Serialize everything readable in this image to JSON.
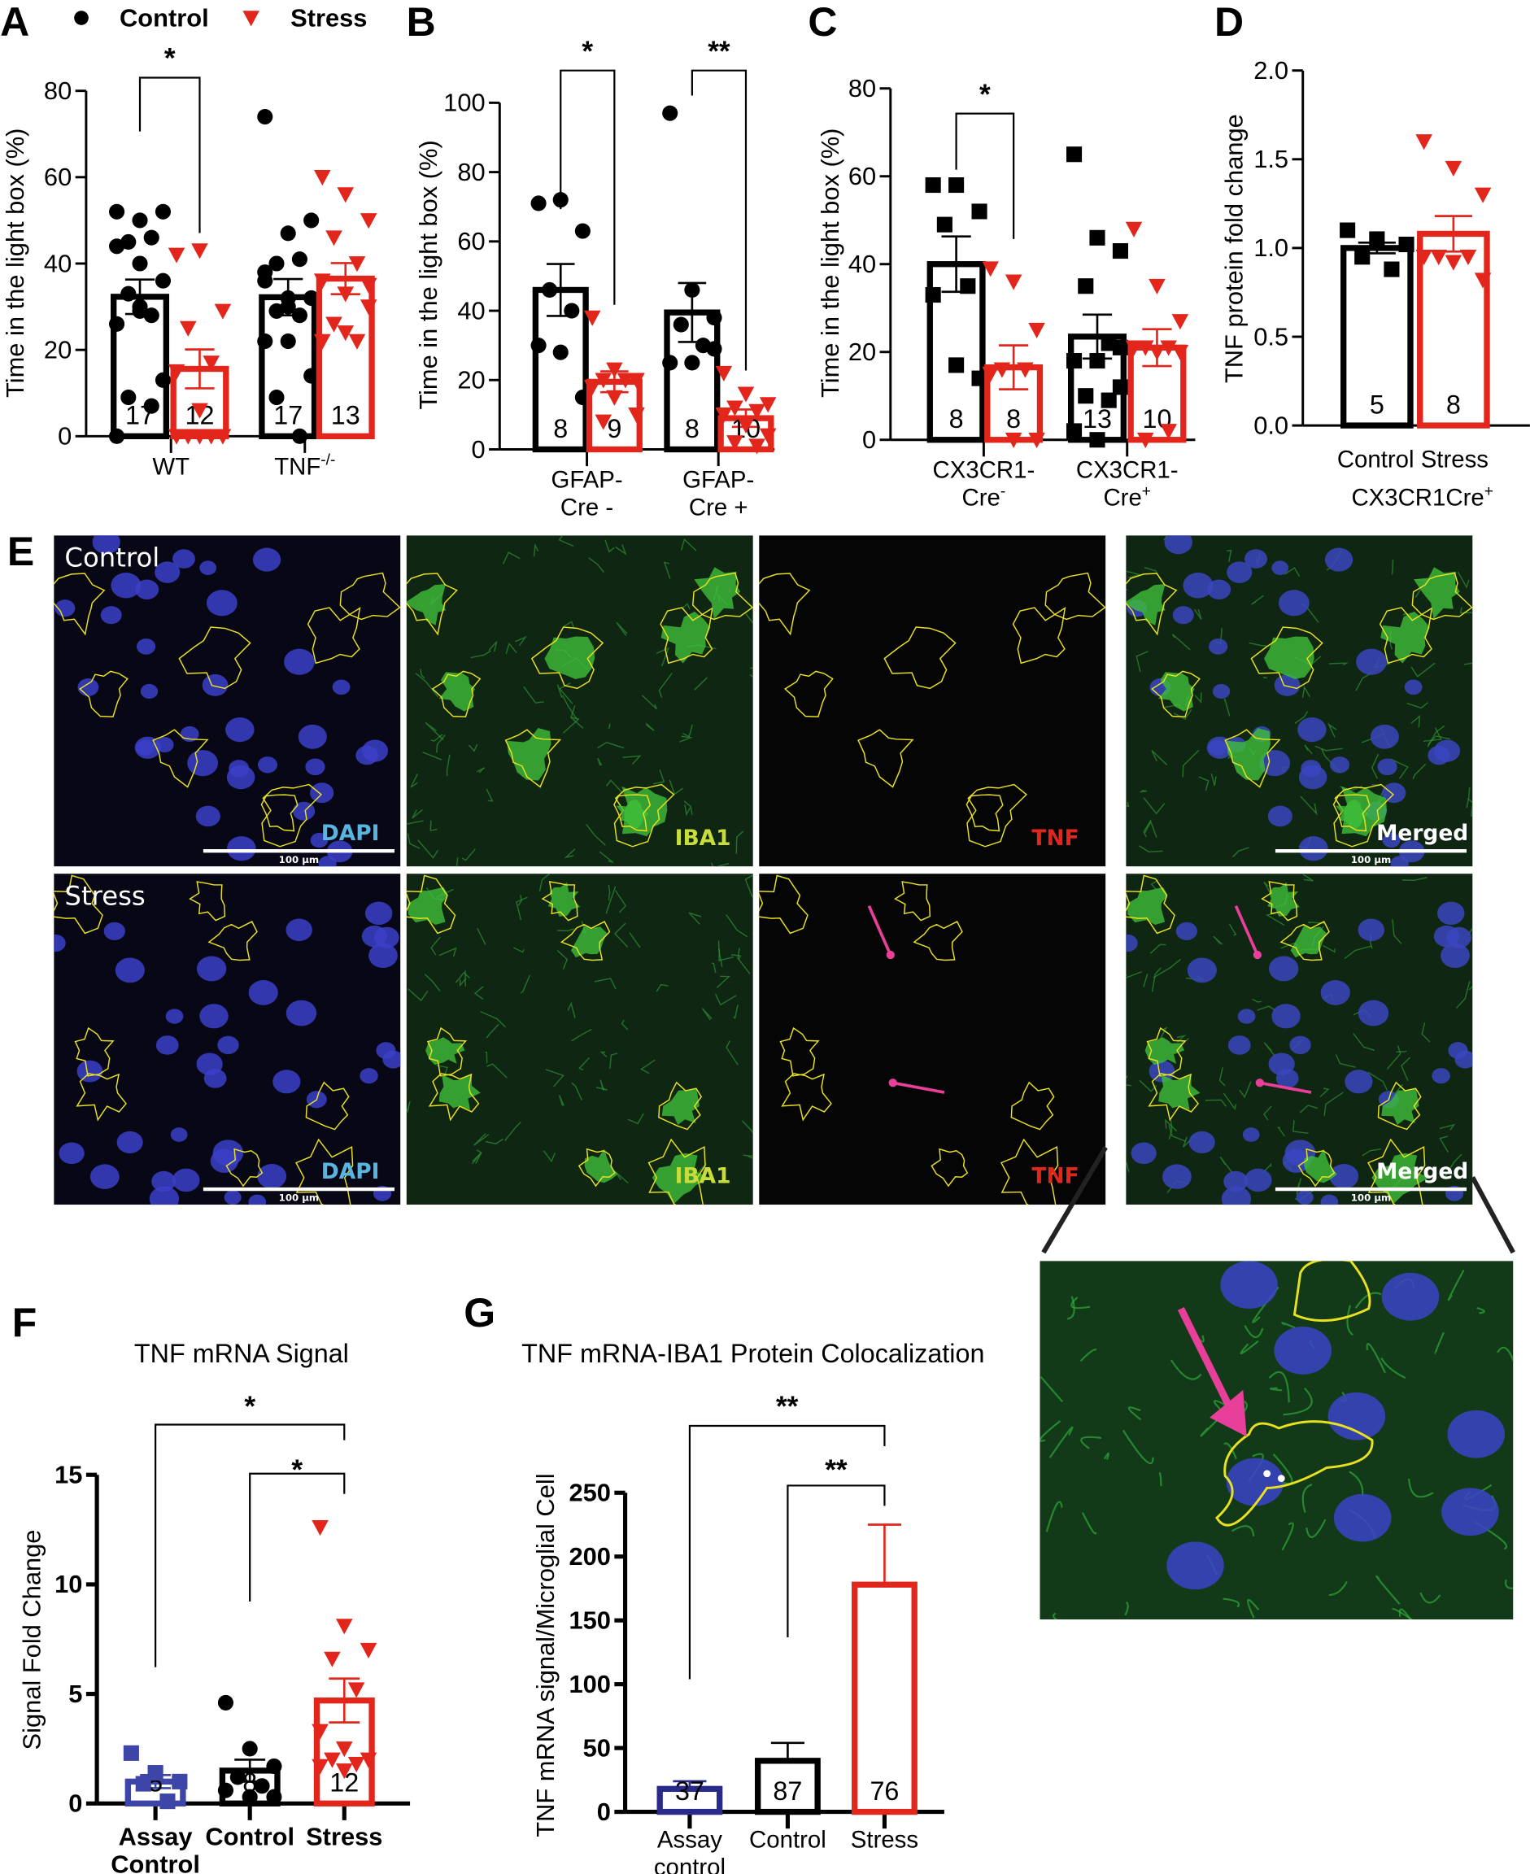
{
  "legend": [
    {
      "label": "Control",
      "marker": "circle",
      "color": "#000000"
    },
    {
      "label": "Stress",
      "marker": "triangle-down",
      "color": "#e2261c"
    }
  ],
  "panel_E": {
    "letter": "E",
    "rows": [
      "Control",
      "Stress"
    ],
    "channels": [
      {
        "label": "DAPI",
        "color": "#5ab4e0"
      },
      {
        "label": "IBA1",
        "color": "#c8dc3c"
      },
      {
        "label": "TNF",
        "color": "#e2261c"
      },
      {
        "label": "Merged",
        "color": "#ffffff"
      }
    ],
    "scale_bar": "100 µm",
    "arrow_color": "#e8409a",
    "outline_color": "#e8e020"
  },
  "chart_data": [
    {
      "panel": "A",
      "type": "bar",
      "ylabel": "Time in the light box (%)",
      "ylim": [
        0,
        80
      ],
      "yticks": [
        0,
        20,
        40,
        60,
        80
      ],
      "ytick_labels": [
        "0",
        "20",
        "40",
        "60",
        "80"
      ],
      "categories": [
        {
          "text": "WT",
          "sup": ""
        },
        {
          "text": "TNF",
          "sup": "-/-"
        }
      ],
      "bars": [
        {
          "group": "WT",
          "condition": "Control",
          "mean": 32.3,
          "sem": 4.0,
          "n": "17",
          "color": "#000000",
          "marker": "circle",
          "points": [
            52,
            50,
            52,
            45,
            46,
            44,
            40,
            36,
            33,
            28,
            26,
            29,
            13,
            9,
            7,
            0,
            30
          ]
        },
        {
          "group": "WT",
          "condition": "Stress",
          "mean": 15.6,
          "sem": 4.5,
          "n": "12",
          "color": "#e2261c",
          "marker": "triangle-down",
          "points": [
            42,
            43,
            29,
            25,
            17,
            15,
            6,
            0,
            0,
            0,
            0,
            0
          ]
        },
        {
          "group": "TNF-/-",
          "condition": "Control",
          "mean": 32.2,
          "sem": 4.2,
          "n": "17",
          "color": "#000000",
          "marker": "circle",
          "points": [
            74,
            47,
            50,
            40,
            41,
            36,
            32,
            32,
            29,
            28,
            22,
            22,
            14,
            9,
            0,
            38,
            30
          ]
        },
        {
          "group": "TNF-/-",
          "condition": "Stress",
          "mean": 36.5,
          "sem": 3.6,
          "n": "13",
          "color": "#e2261c",
          "marker": "triangle-down",
          "points": [
            60,
            56,
            50,
            46,
            40,
            36,
            33,
            30,
            26,
            22,
            22,
            24,
            35
          ]
        }
      ],
      "significance": [
        {
          "from": 0,
          "to": 1,
          "label": "*"
        }
      ]
    },
    {
      "panel": "B",
      "type": "bar",
      "ylabel": "Time in the light box (%)",
      "ylim": [
        0,
        100
      ],
      "yticks": [
        0,
        20,
        40,
        60,
        80,
        100
      ],
      "ytick_labels": [
        "0",
        "20",
        "40",
        "60",
        "80",
        "100"
      ],
      "categories": [
        {
          "lines": [
            "GFAP-",
            "Cre -"
          ]
        },
        {
          "lines": [
            "GFAP-",
            "Cre +"
          ]
        }
      ],
      "bars": [
        {
          "group": "GFAP-Cre -",
          "condition": "Control",
          "mean": 46,
          "sem": 7.5,
          "n": "8",
          "color": "#000000",
          "marker": "circle",
          "points": [
            71,
            72,
            63,
            46,
            40,
            30,
            28,
            15
          ]
        },
        {
          "group": "GFAP-Cre -",
          "condition": "Stress",
          "mean": 19.5,
          "sem": 3,
          "n": "9",
          "color": "#e2261c",
          "marker": "triangle-down",
          "points": [
            38,
            23,
            20,
            20,
            20,
            18,
            15,
            10,
            8
          ]
        },
        {
          "group": "GFAP-Cre +",
          "condition": "Control",
          "mean": 39.5,
          "sem": 8.5,
          "n": "8",
          "color": "#000000",
          "marker": "circle",
          "points": [
            97,
            46,
            38,
            36,
            30,
            25,
            25,
            29
          ]
        },
        {
          "group": "GFAP-Cre +",
          "condition": "Stress",
          "mean": 9,
          "sem": 2.5,
          "n": "10",
          "color": "#e2261c",
          "marker": "triangle-down",
          "points": [
            22,
            16,
            13,
            12,
            11,
            10,
            7,
            4,
            2,
            1
          ]
        }
      ],
      "significance": [
        {
          "from": 0,
          "to": 1,
          "label": "*"
        },
        {
          "from": 2,
          "to": 3,
          "label": "**"
        }
      ]
    },
    {
      "panel": "C",
      "type": "bar",
      "ylabel": "Time in the light box (%)",
      "ylim": [
        0,
        80
      ],
      "yticks": [
        0,
        20,
        40,
        60,
        80
      ],
      "ytick_labels": [
        "0",
        "20",
        "40",
        "60",
        "80"
      ],
      "categories": [
        {
          "lines": [
            "CX3CR1-",
            "Cre"
          ],
          "sup": "-"
        },
        {
          "lines": [
            "CX3CR1-",
            "Cre"
          ],
          "sup": "+"
        }
      ],
      "bars": [
        {
          "group": "CX3CR1-Cre-",
          "condition": "Control",
          "mean": 40,
          "sem": 6.3,
          "n": "8",
          "color": "#000000",
          "marker": "square",
          "points": [
            58,
            58,
            52,
            49,
            35,
            33,
            17,
            14
          ]
        },
        {
          "group": "CX3CR1-Cre-",
          "condition": "Stress",
          "mean": 16.5,
          "sem": 5,
          "n": "8",
          "color": "#e2261c",
          "marker": "triangle-down",
          "points": [
            39,
            36,
            25,
            16,
            16,
            15,
            0,
            0
          ]
        },
        {
          "group": "CX3CR1-Cre+",
          "condition": "Control",
          "mean": 23.5,
          "sem": 5,
          "n": "13",
          "color": "#000000",
          "marker": "square",
          "points": [
            65,
            46,
            43,
            35,
            22,
            18,
            18,
            12,
            10,
            9,
            2,
            0,
            21
          ]
        },
        {
          "group": "CX3CR1-Cre+",
          "condition": "Stress",
          "mean": 21,
          "sem": 4.2,
          "n": "10",
          "color": "#e2261c",
          "marker": "triangle-down",
          "points": [
            48,
            35,
            27,
            21,
            21,
            21,
            20,
            20,
            0,
            2
          ]
        }
      ],
      "significance": [
        {
          "from": 0,
          "to": 1,
          "label": "*"
        }
      ]
    },
    {
      "panel": "D",
      "type": "bar",
      "ylabel": "TNF protein fold change",
      "ylim": [
        0,
        2
      ],
      "yticks": [
        0,
        0.5,
        1,
        1.5,
        2
      ],
      "ytick_labels": [
        "0.0",
        "0.5",
        "1.0",
        "1.5",
        "2.0"
      ],
      "categories": [
        {
          "text": "Control Stress"
        }
      ],
      "group_label": {
        "text": "CX3CR1Cre",
        "sup": "+"
      },
      "bars": [
        {
          "condition": "Control",
          "mean": 1.0,
          "sem": 0.03,
          "n": "5",
          "color": "#000000",
          "marker": "square",
          "points": [
            1.1,
            1.05,
            1.02,
            0.95,
            0.88
          ]
        },
        {
          "condition": "Stress",
          "mean": 1.08,
          "sem": 0.1,
          "n": "8",
          "color": "#e2261c",
          "marker": "triangle-down",
          "points": [
            1.6,
            1.45,
            1.3,
            0.95,
            0.95,
            0.95,
            0.92,
            0.82
          ]
        }
      ],
      "significance": []
    },
    {
      "panel": "F",
      "type": "bar",
      "title": "TNF mRNA Signal",
      "ylabel": "Signal Fold Change",
      "ylim": [
        0,
        15
      ],
      "yticks": [
        0,
        5,
        10,
        15
      ],
      "ytick_labels": [
        "0",
        "5",
        "10",
        "15"
      ],
      "categories": [
        {
          "lines": [
            "Assay",
            "Control"
          ]
        },
        {
          "lines": [
            "Control"
          ]
        },
        {
          "lines": [
            "Stress"
          ]
        }
      ],
      "bars": [
        {
          "condition": "Assay Control",
          "mean": 1.0,
          "sem": 0.3,
          "n": "5",
          "color": "#3d45a8",
          "marker": "square",
          "points": [
            2.3,
            1.4,
            1.0,
            0.9,
            0.1
          ]
        },
        {
          "condition": "Control",
          "mean": 1.5,
          "sem": 0.5,
          "n": "8",
          "color": "#000000",
          "marker": "circle",
          "points": [
            4.6,
            2.5,
            1.7,
            1.2,
            0.8,
            0.6,
            0.3,
            0.3
          ]
        },
        {
          "condition": "Stress",
          "mean": 4.7,
          "sem": 1.0,
          "n": "12",
          "color": "#e2261c",
          "marker": "triangle-down",
          "points": [
            12.6,
            8.1,
            7.0,
            6.6,
            5.2,
            3.3,
            2.5,
            2.0,
            2.0,
            1.8,
            1.7,
            1.5
          ]
        }
      ],
      "significance": [
        {
          "from": 0,
          "to": 2,
          "label": "*"
        },
        {
          "from": 1,
          "to": 2,
          "label": "*"
        }
      ]
    },
    {
      "panel": "G",
      "type": "bar",
      "title": "TNF mRNA-IBA1 Protein Colocalization",
      "ylabel": "TNF mRNA signal/Microglial Cell",
      "ylim": [
        0,
        250
      ],
      "yticks": [
        0,
        50,
        100,
        150,
        200,
        250
      ],
      "ytick_labels": [
        "0",
        "50",
        "100",
        "150",
        "200",
        "250"
      ],
      "categories": [
        {
          "lines": [
            "Assay",
            "control"
          ]
        },
        {
          "lines": [
            "Control"
          ]
        },
        {
          "lines": [
            "Stress"
          ]
        }
      ],
      "bars": [
        {
          "condition": "Assay control",
          "mean": 18,
          "sem": 6,
          "n": "37",
          "color": "#2a2a8a"
        },
        {
          "condition": "Control",
          "mean": 40,
          "sem": 14,
          "n": "87",
          "color": "#000000"
        },
        {
          "condition": "Stress",
          "mean": 178,
          "sem": 47,
          "n": "76",
          "color": "#e2261c"
        }
      ],
      "significance": [
        {
          "from": 0,
          "to": 2,
          "label": "**"
        },
        {
          "from": 1,
          "to": 2,
          "label": "**"
        }
      ]
    }
  ]
}
